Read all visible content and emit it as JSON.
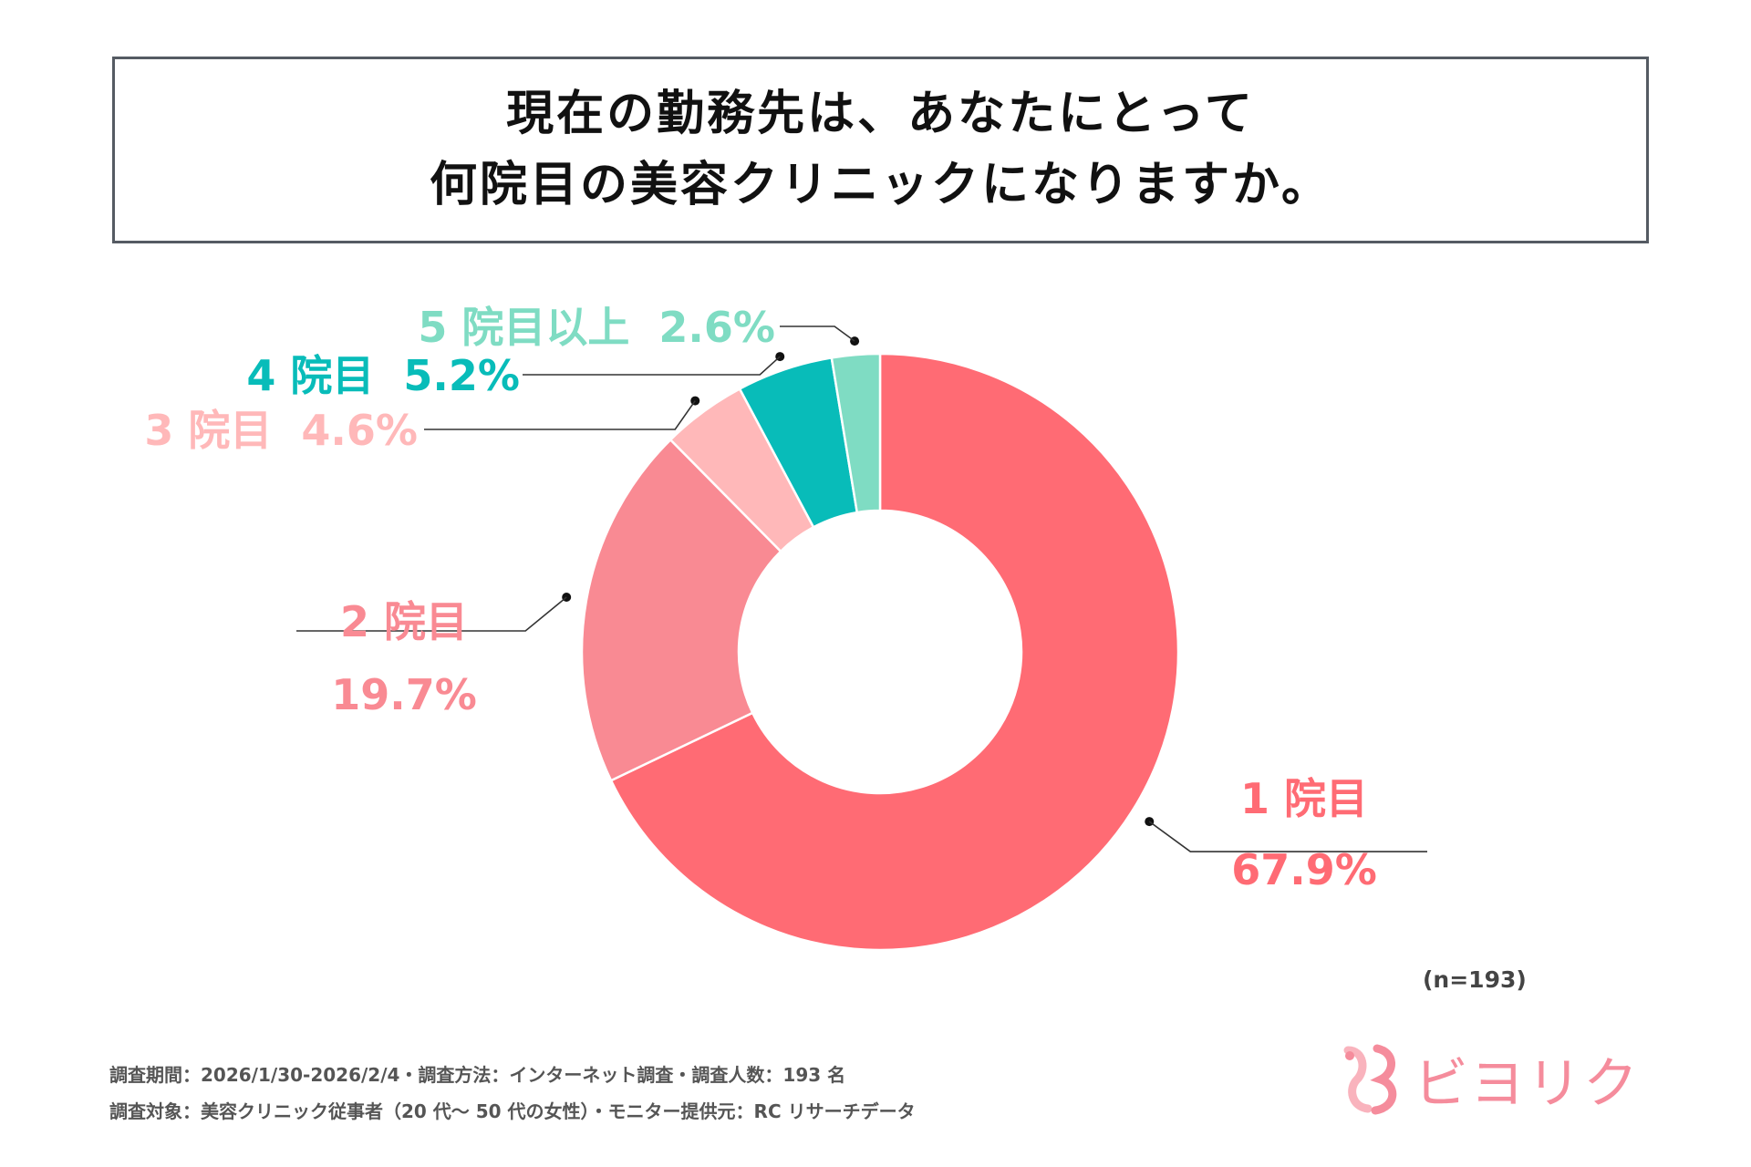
{
  "title": {
    "line1": "現在の勤務先は、あなたにとって",
    "line2": "何院目の美容クリニックになりますか。"
  },
  "chart_data": {
    "type": "pie",
    "style": "donut",
    "categories": [
      "1 院目",
      "2 院目",
      "3 院目",
      "4 院目",
      "5 院目以上"
    ],
    "values": [
      67.9,
      19.7,
      4.6,
      5.2,
      2.6
    ],
    "value_labels": [
      "67.9%",
      "19.7%",
      "4.6%",
      "5.2%",
      "2.6%"
    ],
    "colors": [
      "#ff6b74",
      "#f98a93",
      "#ffb8b9",
      "#08bcb9",
      "#7fdcc3"
    ],
    "label_colors": [
      "#ff6b74",
      "#f98a93",
      "#ffb8b9",
      "#08bcb9",
      "#7fdcc3"
    ],
    "title": "現在の勤務先は、あなたにとって何院目の美容クリニックになりますか。"
  },
  "sample_size": "(n=193)",
  "footnotes": {
    "line1": "調査期間：2026/1/30-2026/2/4・調査方法：インターネット調査・調査人数：193 名",
    "line2": "調査対象：美容クリニック従事者（20 代〜 50 代の女性）・モニター提供元：RC リサーチデータ"
  },
  "logo": {
    "text": "ビヨリク",
    "color": "#f58c9c"
  }
}
